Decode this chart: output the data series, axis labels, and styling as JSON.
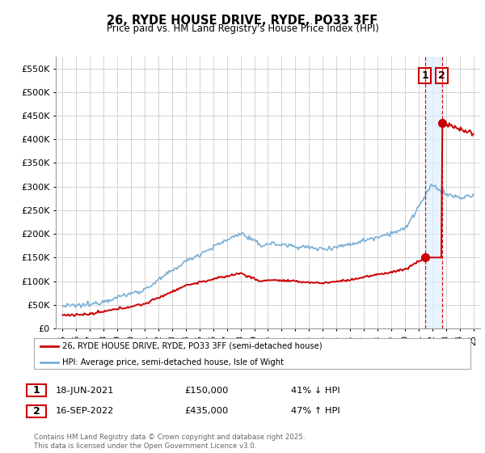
{
  "title": "26, RYDE HOUSE DRIVE, RYDE, PO33 3FF",
  "subtitle": "Price paid vs. HM Land Registry's House Price Index (HPI)",
  "hpi_color": "#7bafd4",
  "price_color": "#cc0000",
  "background_color": "#ffffff",
  "grid_color": "#cccccc",
  "shade_color": "#ddeeff",
  "ylim": [
    0,
    575000
  ],
  "yticks": [
    0,
    50000,
    100000,
    150000,
    200000,
    250000,
    300000,
    350000,
    400000,
    450000,
    500000,
    550000
  ],
  "ytick_labels": [
    "£0",
    "£50K",
    "£100K",
    "£150K",
    "£200K",
    "£250K",
    "£300K",
    "£350K",
    "£400K",
    "£450K",
    "£500K",
    "£550K"
  ],
  "legend_house_label": "26, RYDE HOUSE DRIVE, RYDE, PO33 3FF (semi-detached house)",
  "legend_hpi_label": "HPI: Average price, semi-detached house, Isle of Wight",
  "transaction1_date": "18-JUN-2021",
  "transaction1_price": "£150,000",
  "transaction1_hpi": "41% ↓ HPI",
  "transaction2_date": "16-SEP-2022",
  "transaction2_price": "£435,000",
  "transaction2_hpi": "47% ↑ HPI",
  "footnote": "Contains HM Land Registry data © Crown copyright and database right 2025.\nThis data is licensed under the Open Government Licence v3.0.",
  "marker1_year": 2021.46,
  "marker1_value": 150000,
  "marker2_year": 2022.71,
  "marker2_value": 435000
}
